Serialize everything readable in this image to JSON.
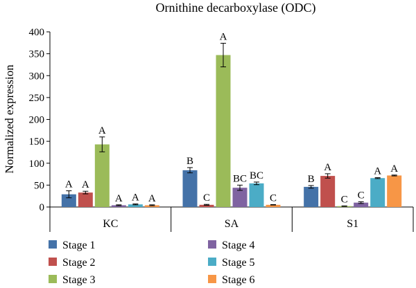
{
  "chart_data": {
    "type": "bar",
    "title": "Ornithine decarboxylase (ODC)",
    "xlabel": "",
    "ylabel": "Normalized expression",
    "ylim": [
      0,
      400
    ],
    "yticks": [
      0,
      50,
      100,
      150,
      200,
      250,
      300,
      350,
      400
    ],
    "categories": [
      "KC",
      "SA",
      "S1"
    ],
    "legend_position": "bottom",
    "series": [
      {
        "name": "Stage 1",
        "color": "#4472a8",
        "values": [
          29,
          84,
          46
        ],
        "errors": [
          8,
          6,
          3
        ],
        "letters": [
          "A",
          "B",
          "B"
        ]
      },
      {
        "name": "Stage 2",
        "color": "#c0504d",
        "values": [
          33,
          5,
          71
        ],
        "errors": [
          3,
          1,
          5
        ],
        "letters": [
          "A",
          "C",
          "A"
        ]
      },
      {
        "name": "Stage 3",
        "color": "#9bbb59",
        "values": [
          143,
          347,
          2
        ],
        "errors": [
          17,
          27,
          0.5
        ],
        "letters": [
          "A",
          "A",
          "C"
        ]
      },
      {
        "name": "Stage 4",
        "color": "#7f63a1",
        "values": [
          4,
          44,
          10
        ],
        "errors": [
          1,
          6,
          2
        ],
        "letters": [
          "A",
          "BC",
          "C"
        ]
      },
      {
        "name": "Stage 5",
        "color": "#4bacc6",
        "values": [
          6,
          54,
          66
        ],
        "errors": [
          1,
          3,
          1
        ],
        "letters": [
          "A",
          "BC",
          "A"
        ]
      },
      {
        "name": "Stage 6",
        "color": "#f79646",
        "values": [
          4,
          5,
          72
        ],
        "errors": [
          1,
          0.5,
          1
        ],
        "letters": [
          "A",
          "C",
          "A"
        ]
      }
    ]
  }
}
